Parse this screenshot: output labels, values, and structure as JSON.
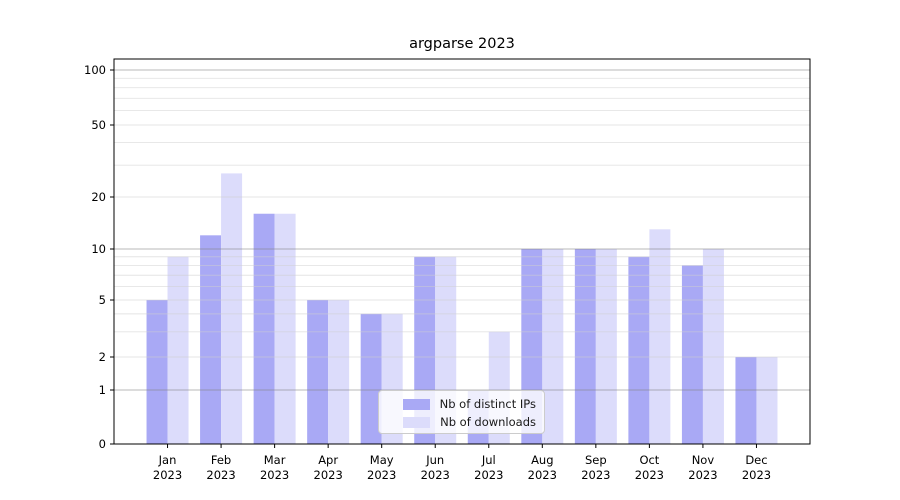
{
  "chart_data": {
    "type": "bar",
    "title": "argparse 2023",
    "categories": [
      "Jan",
      "Feb",
      "Mar",
      "Apr",
      "May",
      "Jun",
      "Jul",
      "Aug",
      "Sep",
      "Oct",
      "Nov",
      "Dec"
    ],
    "category_year_label": "2023",
    "series": [
      {
        "name": "Nb of distinct IPs",
        "color": "#a9a9f5",
        "values": [
          5,
          12,
          16,
          5,
          4,
          9,
          1,
          10,
          10,
          9,
          8,
          2
        ]
      },
      {
        "name": "Nb of downloads",
        "color": "#dcdcfb",
        "values": [
          9,
          27,
          16,
          5,
          4,
          9,
          3,
          10,
          10,
          13,
          10,
          2
        ]
      }
    ],
    "xlabel": "",
    "ylabel": "",
    "yscale": "symlog",
    "ylim": [
      0,
      120
    ],
    "yticks": [
      0,
      1,
      2,
      5,
      10,
      20,
      50,
      100
    ],
    "gridlines_strong": [
      1,
      10,
      100
    ],
    "gridlines_light": [
      2,
      3,
      4,
      5,
      6,
      7,
      8,
      9,
      20,
      30,
      40,
      50,
      60,
      70,
      80,
      90
    ],
    "grid": true,
    "legend_position": "lower center"
  }
}
